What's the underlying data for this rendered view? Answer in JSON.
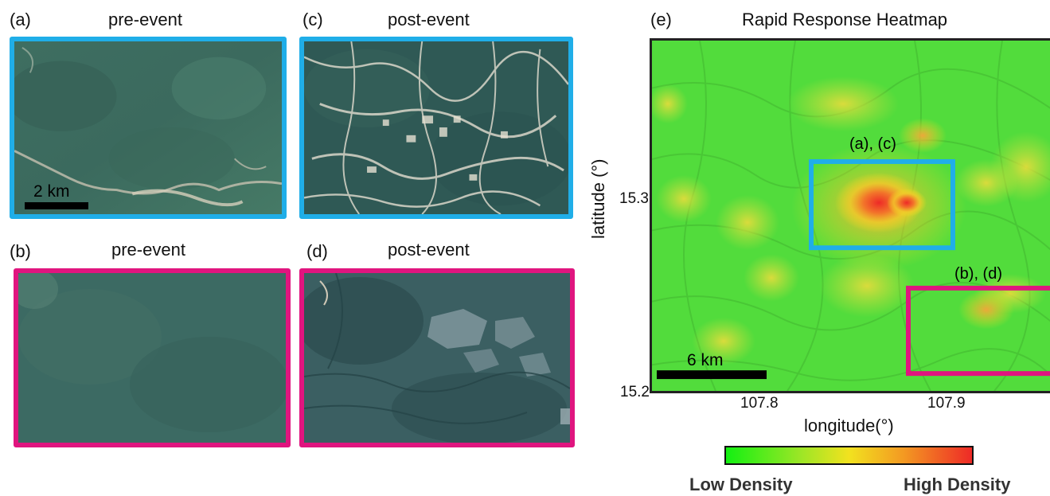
{
  "panels": {
    "a": {
      "label": "(a)",
      "title": "pre-event",
      "scale_label": "2 km"
    },
    "b": {
      "label": "(b)",
      "title": "pre-event"
    },
    "c": {
      "label": "(c)",
      "title": "post-event"
    },
    "d": {
      "label": "(d)",
      "title": "post-event"
    },
    "e": {
      "label": "(e)",
      "title": "Rapid Response Heatmap",
      "scale_label": "6 km",
      "box_ac_label": "(a), (c)",
      "box_bd_label": "(b), (d)"
    }
  },
  "axes": {
    "xlabel": "longitude(°)",
    "ylabel": "latitude (°)",
    "xticks": [
      "107.8",
      "107.9"
    ],
    "yticks": [
      "15.3",
      "15.2"
    ]
  },
  "colorbar": {
    "low_label": "Low Density",
    "high_label": "High Density"
  },
  "colors": {
    "pre_post_ac_frame": "#20aee8",
    "pre_post_bd_frame": "#e0157f",
    "heat_low": "#13f012",
    "heat_mid": "#f2e21f",
    "heat_high": "#ee2a27"
  }
}
